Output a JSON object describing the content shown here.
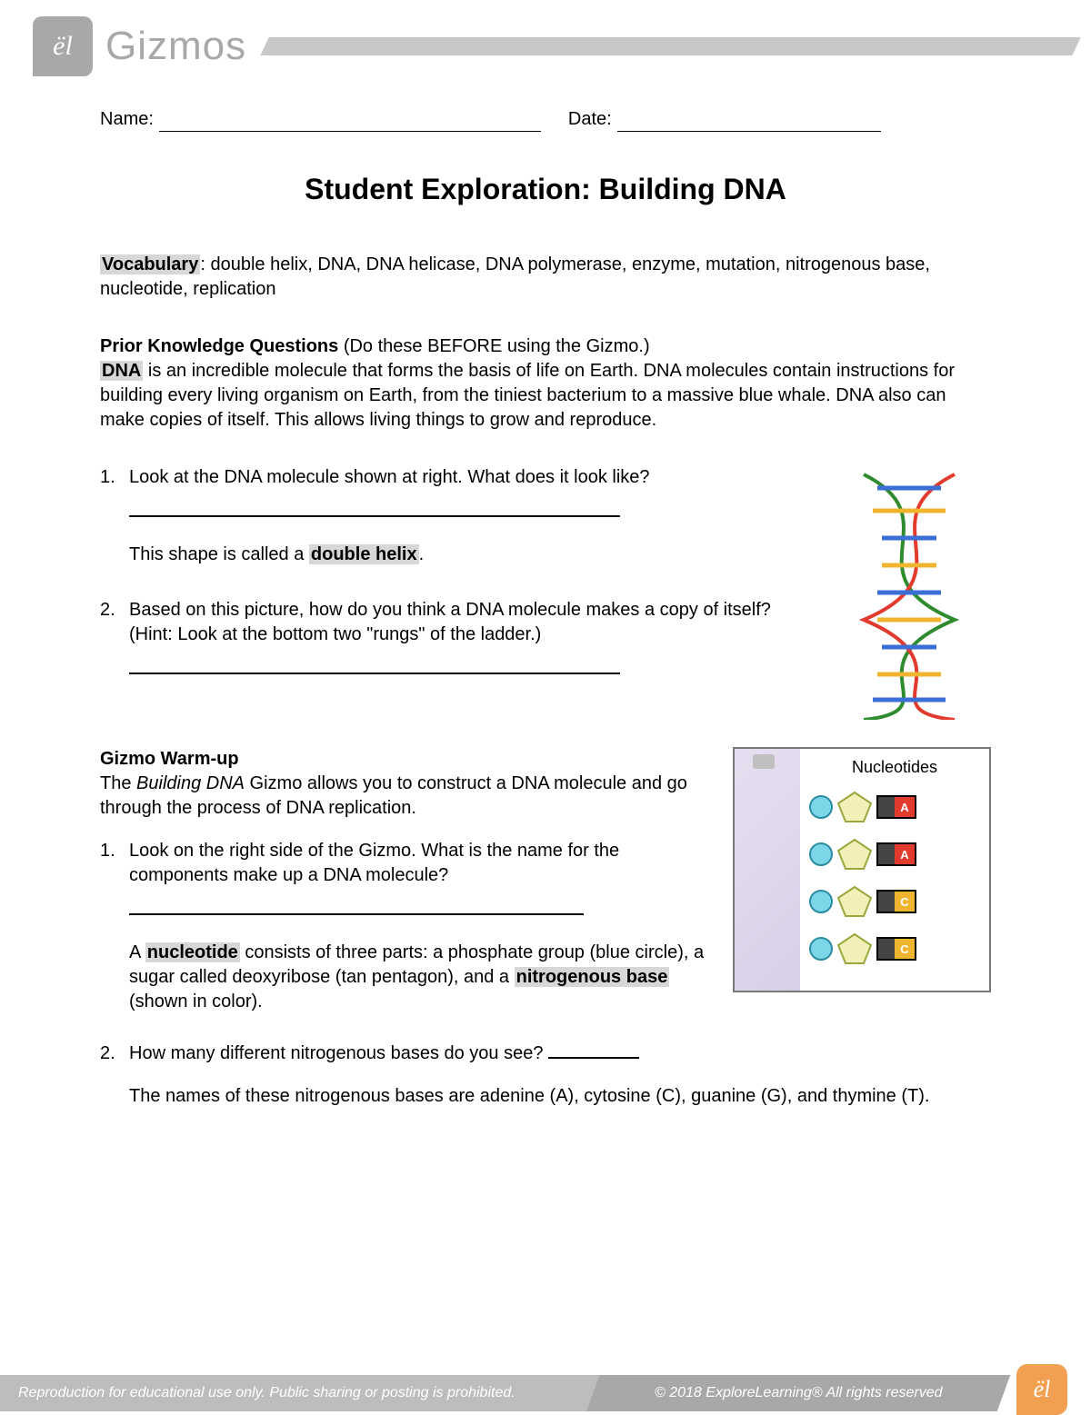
{
  "header": {
    "logo_glyph": "ël",
    "brand": "Gizmos"
  },
  "namedate": {
    "name_label": "Name:",
    "date_label": "Date:"
  },
  "title": "Student Exploration: Building DNA",
  "vocab": {
    "label": "Vocabulary",
    "text": ": double helix, DNA, DNA helicase, DNA polymerase, enzyme, mutation, nitrogenous base, nucleotide, replication"
  },
  "prior": {
    "heading": "Prior Knowledge Questions",
    "heading_paren": " (Do these BEFORE using the Gizmo.)",
    "dna_bold": "DNA",
    "intro": " is an incredible molecule that forms the basis of life on Earth. DNA molecules contain instructions for building every living organism on Earth, from the tiniest bacterium to a massive blue whale. DNA also can make copies of itself. This allows living things to grow and reproduce.",
    "q1_num": "1.",
    "q1": "Look at the DNA molecule shown at right. What does it look like?",
    "shape_pre": "This shape is called a ",
    "shape_term": "double helix",
    "shape_post": ".",
    "q2_num": "2.",
    "q2": "Based on this picture, how do you think a DNA molecule makes a copy of itself? (Hint: Look at the bottom two \"rungs\" of the ladder.)"
  },
  "warmup": {
    "heading": "Gizmo Warm-up",
    "intro_pre": "The ",
    "intro_ital": "Building DNA",
    "intro_post": " Gizmo allows you to construct a DNA molecule and go through the process of DNA replication.",
    "q1_num": "1.",
    "q1": "Look on the right side of the Gizmo. What is the name for the components make up a DNA molecule?",
    "nuc_pre": "A ",
    "nuc_term": "nucleotide",
    "nuc_mid": " consists of three parts: a phosphate group (blue circle), a sugar called deoxyribose (tan pentagon), and a ",
    "nuc_term2": "nitrogenous base",
    "nuc_post": " (shown in color).",
    "q2_num": "2.",
    "q2": "How many different nitrogenous bases do you see? ",
    "bases_names": "The names of these nitrogenous bases are adenine (A), cytosine (C), guanine (G), and thymine (T)."
  },
  "nuc_panel": {
    "title": "Nucleotides",
    "items": [
      {
        "letter": "A",
        "color": "#e23b2e"
      },
      {
        "letter": "A",
        "color": "#e23b2e"
      },
      {
        "letter": "C",
        "color": "#f0b52e"
      },
      {
        "letter": "C",
        "color": "#f0b52e"
      }
    ],
    "phosphate_color": "#7dd6e8",
    "sugar_fill": "#f2f0b8",
    "sugar_stroke": "#9aa73c"
  },
  "dna_fig": {
    "backbone1": "#e23b2e",
    "backbone2": "#2e8b2e",
    "rung1": "#3b6fd6",
    "rung2": "#f0b52e"
  },
  "footer": {
    "left": "Reproduction for educational use only. Public sharing or posting is prohibited.",
    "right": "© 2018 ExploreLearning®  All rights reserved",
    "logo_glyph": "ël"
  }
}
